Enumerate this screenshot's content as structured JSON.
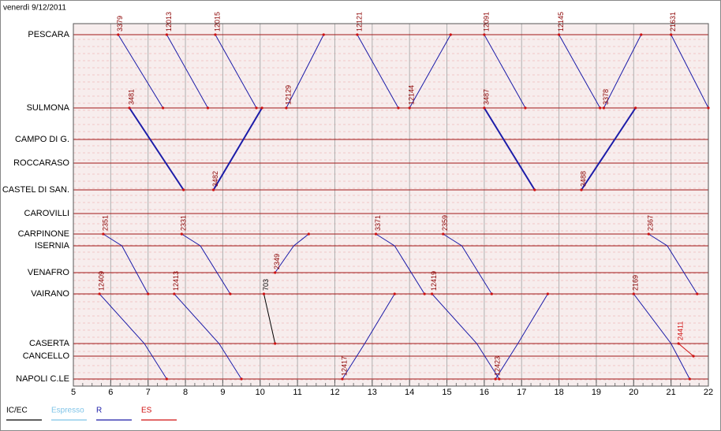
{
  "chart_data": {
    "type": "line",
    "title": "venerdì 9/12/2011",
    "categories": [
      "PESCARA",
      "SULMONA",
      "CAMPO DI G.",
      "ROCCARASO",
      "CASTEL DI SAN.",
      "CAROVILLI",
      "CARPINONE",
      "ISERNIA",
      "VENAFRO",
      "VAIRANO",
      "CASERTA",
      "CANCELLO",
      "NAPOLI C.LE"
    ],
    "xlim": [
      5,
      22
    ],
    "xticks": [
      5,
      6,
      7,
      8,
      9,
      10,
      11,
      12,
      13,
      14,
      15,
      16,
      17,
      18,
      19,
      20,
      21,
      22
    ],
    "grid": true,
    "legend": [
      {
        "name": "IC/EC",
        "color": "#000000"
      },
      {
        "name": "Espresso",
        "color": "#7fc4e8"
      },
      {
        "name": "R",
        "color": "#1c1ca8"
      },
      {
        "name": "ES",
        "color": "#d01010"
      }
    ],
    "series": [
      {
        "name": "3379",
        "color": "#1c1ca8",
        "x": [
          6.2,
          7.4
        ],
        "values": [
          0,
          1
        ]
      },
      {
        "name": "12013",
        "color": "#1c1ca8",
        "x": [
          7.5,
          8.6
        ],
        "values": [
          0,
          1
        ]
      },
      {
        "name": "12015",
        "color": "#1c1ca8",
        "x": [
          8.8,
          9.9
        ],
        "values": [
          0,
          1
        ]
      },
      {
        "name": "12129",
        "color": "#1c1ca8",
        "x": [
          10.7,
          11.7
        ],
        "values": [
          1,
          0
        ]
      },
      {
        "name": "12121",
        "color": "#1c1ca8",
        "x": [
          12.6,
          13.7
        ],
        "values": [
          0,
          1
        ]
      },
      {
        "name": "12144",
        "color": "#1c1ca8",
        "x": [
          14.0,
          15.1
        ],
        "values": [
          1,
          0
        ]
      },
      {
        "name": "12091",
        "color": "#1c1ca8",
        "x": [
          16.0,
          17.1
        ],
        "values": [
          0,
          1
        ]
      },
      {
        "name": "12145",
        "color": "#1c1ca8",
        "x": [
          18.0,
          19.1
        ],
        "values": [
          0,
          1
        ]
      },
      {
        "name": "3378",
        "color": "#1c1ca8",
        "x": [
          19.2,
          20.2
        ],
        "values": [
          1,
          0
        ]
      },
      {
        "name": "21631",
        "color": "#1c1ca8",
        "x": [
          21.0,
          22.0
        ],
        "values": [
          0,
          1
        ]
      },
      {
        "name": "3481",
        "color": "#1c1ca8",
        "x": [
          6.5,
          7.95
        ],
        "values": [
          1,
          4
        ]
      },
      {
        "name": "3482",
        "color": "#1c1ca8",
        "x": [
          8.75,
          10.05
        ],
        "values": [
          4,
          1
        ]
      },
      {
        "name": "3487",
        "color": "#1c1ca8",
        "x": [
          16.0,
          17.35
        ],
        "values": [
          1,
          4
        ]
      },
      {
        "name": "3488",
        "color": "#1c1ca8",
        "x": [
          18.6,
          20.05
        ],
        "values": [
          4,
          1
        ]
      },
      {
        "name": "2351",
        "color": "#1c1ca8",
        "x": [
          5.8,
          6.3,
          7.0
        ],
        "values": [
          6,
          7,
          9
        ]
      },
      {
        "name": "2331",
        "color": "#1c1ca8",
        "x": [
          7.9,
          8.4,
          9.2
        ],
        "values": [
          6,
          7,
          9
        ]
      },
      {
        "name": "2349",
        "color": "#1c1ca8",
        "x": [
          10.4,
          10.9,
          11.3
        ],
        "values": [
          8,
          7,
          6
        ]
      },
      {
        "name": "3371",
        "color": "#1c1ca8",
        "x": [
          13.1,
          13.6,
          14.4
        ],
        "values": [
          6,
          7,
          9
        ]
      },
      {
        "name": "2359",
        "color": "#1c1ca8",
        "x": [
          14.9,
          15.4,
          16.2
        ],
        "values": [
          6,
          7,
          9
        ]
      },
      {
        "name": "2367",
        "color": "#1c1ca8",
        "x": [
          20.4,
          20.9,
          21.7
        ],
        "values": [
          6,
          7,
          9
        ]
      },
      {
        "name": "12409",
        "color": "#1c1ca8",
        "x": [
          5.7,
          6.9,
          7.5
        ],
        "values": [
          9,
          10,
          12
        ]
      },
      {
        "name": "12413",
        "color": "#1c1ca8",
        "x": [
          7.7,
          8.9,
          9.5
        ],
        "values": [
          9,
          10,
          12
        ]
      },
      {
        "name": "703",
        "color": "#000000",
        "x": [
          10.1,
          10.4
        ],
        "values": [
          9,
          10
        ]
      },
      {
        "name": "12417",
        "color": "#1c1ca8",
        "x": [
          12.2,
          12.8,
          13.6
        ],
        "values": [
          12,
          10,
          9
        ]
      },
      {
        "name": "12419",
        "color": "#1c1ca8",
        "x": [
          14.6,
          15.8,
          16.4
        ],
        "values": [
          9,
          10,
          12
        ]
      },
      {
        "name": "12423",
        "color": "#1c1ca8",
        "x": [
          16.3,
          16.9,
          17.7
        ],
        "values": [
          12,
          10,
          9
        ]
      },
      {
        "name": "2169",
        "color": "#1c1ca8",
        "x": [
          20.0,
          21.0,
          21.5
        ],
        "values": [
          9,
          10,
          12
        ]
      },
      {
        "name": "24411",
        "color": "#d01010",
        "x": [
          21.2,
          21.6
        ],
        "values": [
          10,
          11
        ]
      }
    ]
  }
}
